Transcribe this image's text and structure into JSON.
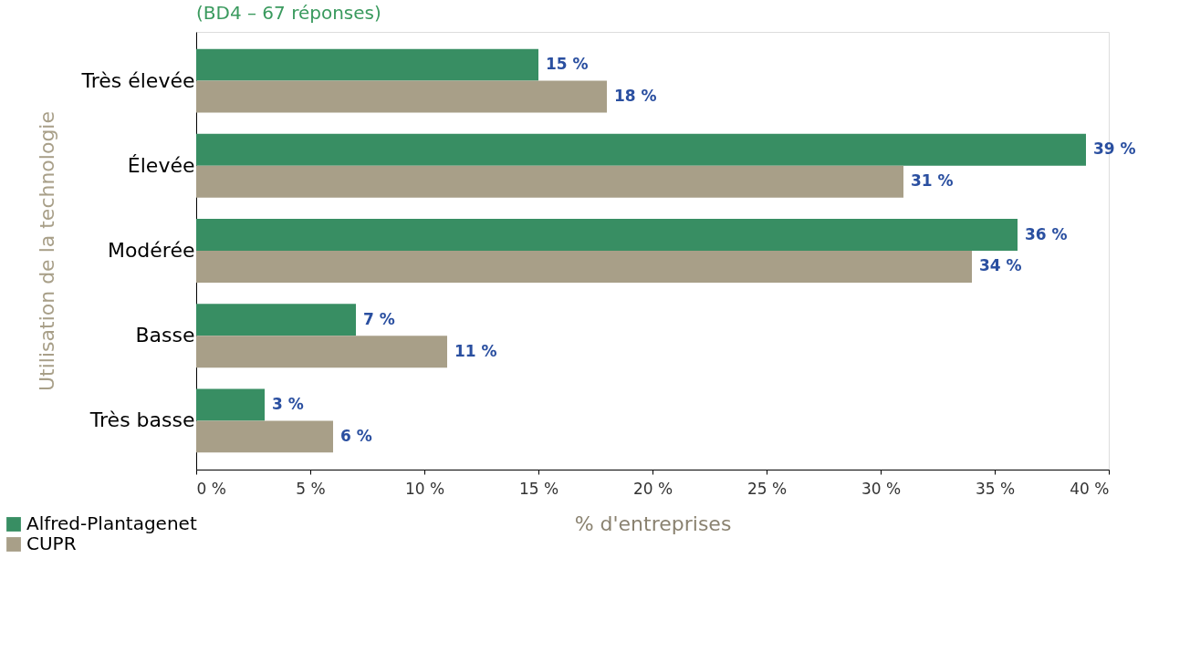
{
  "chart_data": {
    "type": "bar",
    "orientation": "horizontal",
    "title": "(BD4 – 67 réponses)",
    "xlabel": "% d'entreprises",
    "ylabel": "Utilisation de la technologie",
    "categories": [
      "Très élevée",
      "Élevée",
      "Modérée",
      "Basse",
      "Très basse"
    ],
    "series": [
      {
        "name": "Alfred-Plantagenet",
        "color": "#388e63",
        "values": [
          15,
          39,
          36,
          7,
          3
        ],
        "value_labels": [
          "15 %",
          "39 %",
          "36 %",
          "7 %",
          "3 %"
        ]
      },
      {
        "name": "CUPR",
        "color": "#a89f88",
        "values": [
          18,
          31,
          34,
          11,
          6
        ],
        "value_labels": [
          "18 %",
          "31 %",
          "34 %",
          "11 %",
          "6 %"
        ]
      }
    ],
    "xlim": [
      0,
      40
    ],
    "xticks": [
      {
        "value": 0,
        "label": "0 %"
      },
      {
        "value": 5,
        "label": "5 %"
      },
      {
        "value": 10,
        "label": "10 %"
      },
      {
        "value": 15,
        "label": "15 %"
      },
      {
        "value": 20,
        "label": "20 %"
      },
      {
        "value": 25,
        "label": "25 %"
      },
      {
        "value": 30,
        "label": "30 %"
      },
      {
        "value": 35,
        "label": "35 %"
      },
      {
        "value": 40,
        "label": "40 %"
      }
    ],
    "grid": false,
    "legend": "bottom left"
  }
}
